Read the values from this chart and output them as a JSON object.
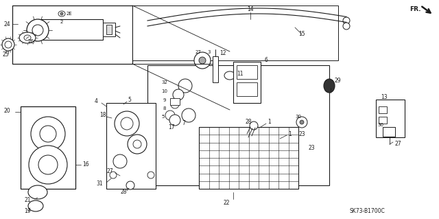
{
  "bg_color": "#ffffff",
  "line_color": "#1a1a1a",
  "fig_width": 6.4,
  "fig_height": 3.19,
  "dpi": 100,
  "diagram_code": "SK73-B1700C"
}
